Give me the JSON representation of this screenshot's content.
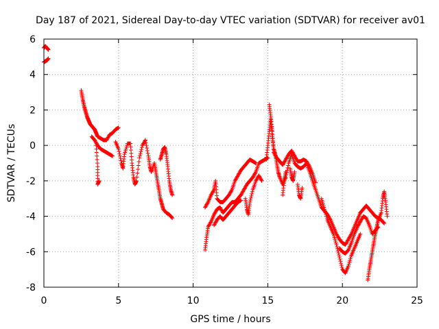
{
  "chart_data": {
    "type": "scatter",
    "title": "Day 187 of 2021, Sidereal Day-to-day VTEC variation (SDTVAR) for receiver av01",
    "xlabel": "GPS time / hours",
    "ylabel": "SDTVAR / TECUs",
    "xlim": [
      0,
      25
    ],
    "ylim": [
      -8,
      6
    ],
    "xticks": [
      0,
      5,
      10,
      15,
      20,
      25
    ],
    "yticks": [
      -8,
      -6,
      -4,
      -2,
      0,
      2,
      4,
      6
    ],
    "grid": true,
    "marker": "+",
    "series": [
      {
        "name": "SDTVAR",
        "color": "#ff0000",
        "polylines": [
          [
            [
              0.0,
              4.7
            ],
            [
              0.1,
              4.75
            ],
            [
              0.2,
              4.8
            ],
            [
              0.3,
              4.9
            ]
          ],
          [
            [
              0.0,
              5.5
            ],
            [
              0.1,
              5.6
            ],
            [
              0.2,
              5.5
            ],
            [
              0.3,
              5.4
            ]
          ],
          [
            [
              2.5,
              3.1
            ],
            [
              2.6,
              2.6
            ],
            [
              2.7,
              2.2
            ],
            [
              2.8,
              1.9
            ],
            [
              2.9,
              1.6
            ],
            [
              3.0,
              1.4
            ],
            [
              3.1,
              1.2
            ],
            [
              3.2,
              1.1
            ],
            [
              3.3,
              1.0
            ],
            [
              3.4,
              0.9
            ],
            [
              3.5,
              0.7
            ],
            [
              3.6,
              0.5
            ],
            [
              3.8,
              0.4
            ],
            [
              4.0,
              0.3
            ],
            [
              4.2,
              0.3
            ],
            [
              4.4,
              0.6
            ],
            [
              4.6,
              0.7
            ],
            [
              4.8,
              0.9
            ],
            [
              5.0,
              1.0
            ]
          ],
          [
            [
              3.2,
              0.5
            ],
            [
              3.4,
              0.3
            ],
            [
              3.6,
              0.0
            ],
            [
              3.8,
              -0.2
            ],
            [
              4.0,
              -0.3
            ],
            [
              4.2,
              -0.4
            ],
            [
              4.4,
              -0.5
            ],
            [
              4.6,
              -0.6
            ]
          ],
          [
            [
              3.5,
              0.0
            ],
            [
              3.6,
              -1.2
            ],
            [
              3.6,
              -2.2
            ],
            [
              3.7,
              -2.0
            ]
          ],
          [
            [
              4.8,
              0.2
            ],
            [
              5.0,
              -0.2
            ],
            [
              5.2,
              -1.0
            ],
            [
              5.3,
              -1.3
            ],
            [
              5.4,
              -0.5
            ],
            [
              5.6,
              0.1
            ],
            [
              5.8,
              0.1
            ],
            [
              5.9,
              -1.0
            ],
            [
              6.0,
              -1.8
            ],
            [
              6.1,
              -2.2
            ],
            [
              6.2,
              -2.0
            ],
            [
              6.4,
              -0.7
            ],
            [
              6.6,
              0.0
            ],
            [
              6.8,
              0.3
            ],
            [
              7.0,
              -0.6
            ],
            [
              7.1,
              -1.2
            ],
            [
              7.2,
              -1.5
            ],
            [
              7.4,
              -1.0
            ],
            [
              7.5,
              -1.5
            ],
            [
              7.6,
              -2.0
            ],
            [
              7.7,
              -2.5
            ],
            [
              7.8,
              -3.0
            ],
            [
              7.9,
              -3.3
            ],
            [
              8.0,
              -3.6
            ],
            [
              8.2,
              -3.8
            ],
            [
              8.4,
              -3.9
            ],
            [
              8.6,
              -4.1
            ]
          ],
          [
            [
              7.8,
              -0.8
            ],
            [
              7.9,
              -0.5
            ],
            [
              8.0,
              -0.2
            ],
            [
              8.1,
              -0.1
            ],
            [
              8.2,
              -0.5
            ],
            [
              8.3,
              -1.2
            ],
            [
              8.4,
              -2.0
            ],
            [
              8.5,
              -2.5
            ],
            [
              8.6,
              -2.8
            ]
          ],
          [
            [
              10.8,
              -5.9
            ],
            [
              10.9,
              -5.2
            ],
            [
              11.0,
              -4.6
            ],
            [
              11.2,
              -4.3
            ],
            [
              11.4,
              -3.9
            ],
            [
              11.6,
              -3.6
            ],
            [
              11.8,
              -3.5
            ],
            [
              12.0,
              -3.8
            ],
            [
              12.2,
              -3.6
            ],
            [
              12.4,
              -3.4
            ],
            [
              12.6,
              -3.2
            ],
            [
              12.8,
              -3.2
            ],
            [
              13.0,
              -3.0
            ],
            [
              13.2,
              -2.8
            ],
            [
              13.4,
              -2.5
            ],
            [
              13.6,
              -2.2
            ],
            [
              13.8,
              -2.0
            ],
            [
              14.0,
              -1.8
            ],
            [
              14.2,
              -1.5
            ],
            [
              14.4,
              -1.0
            ],
            [
              14.6,
              -0.9
            ],
            [
              14.8,
              -0.8
            ],
            [
              15.0,
              -0.7
            ]
          ],
          [
            [
              10.8,
              -3.5
            ],
            [
              11.0,
              -3.2
            ],
            [
              11.2,
              -2.8
            ],
            [
              11.4,
              -2.5
            ],
            [
              11.5,
              -2.0
            ],
            [
              11.6,
              -3.0
            ],
            [
              11.8,
              -3.2
            ],
            [
              12.0,
              -3.2
            ],
            [
              12.2,
              -3.0
            ],
            [
              12.4,
              -2.8
            ],
            [
              12.6,
              -2.5
            ],
            [
              12.8,
              -2.0
            ],
            [
              13.0,
              -1.7
            ],
            [
              13.2,
              -1.4
            ],
            [
              13.4,
              -1.2
            ],
            [
              13.6,
              -1.0
            ],
            [
              13.8,
              -0.8
            ],
            [
              14.0,
              -0.9
            ],
            [
              14.2,
              -1.0
            ]
          ],
          [
            [
              11.4,
              -4.5
            ],
            [
              11.6,
              -4.2
            ],
            [
              11.8,
              -4.0
            ],
            [
              12.0,
              -4.2
            ],
            [
              12.2,
              -4.0
            ],
            [
              12.4,
              -3.8
            ],
            [
              12.6,
              -3.6
            ],
            [
              12.8,
              -3.4
            ],
            [
              13.0,
              -3.2
            ],
            [
              13.2,
              -3.1
            ]
          ],
          [
            [
              13.5,
              -3.0
            ],
            [
              13.6,
              -3.6
            ],
            [
              13.7,
              -3.9
            ],
            [
              13.8,
              -3.2
            ],
            [
              14.0,
              -2.5
            ],
            [
              14.2,
              -2.0
            ],
            [
              14.4,
              -1.7
            ],
            [
              14.6,
              -2.0
            ]
          ],
          [
            [
              14.9,
              -0.8
            ],
            [
              15.0,
              0.0
            ],
            [
              15.1,
              0.8
            ],
            [
              15.2,
              1.5
            ],
            [
              15.3,
              0.5
            ],
            [
              15.4,
              -0.2
            ],
            [
              15.5,
              -0.5
            ],
            [
              15.6,
              -1.0
            ],
            [
              15.7,
              -1.5
            ],
            [
              15.8,
              -1.8
            ],
            [
              16.0,
              -2.2
            ],
            [
              16.2,
              -1.8
            ],
            [
              16.4,
              -1.0
            ],
            [
              16.6,
              -0.5
            ],
            [
              16.8,
              -1.0
            ],
            [
              17.0,
              -1.2
            ],
            [
              17.2,
              -1.3
            ],
            [
              17.4,
              -1.2
            ],
            [
              17.6,
              -1.0
            ],
            [
              17.8,
              -1.5
            ],
            [
              18.0,
              -2.0
            ],
            [
              18.2,
              -2.5
            ],
            [
              18.4,
              -3.0
            ],
            [
              18.6,
              -3.5
            ],
            [
              18.8,
              -3.7
            ],
            [
              19.0,
              -3.9
            ],
            [
              19.2,
              -4.2
            ],
            [
              19.4,
              -4.6
            ],
            [
              19.6,
              -5.0
            ],
            [
              19.8,
              -5.3
            ],
            [
              20.0,
              -5.5
            ],
            [
              20.2,
              -5.6
            ],
            [
              20.4,
              -5.3
            ],
            [
              20.6,
              -5.0
            ],
            [
              20.8,
              -4.6
            ],
            [
              21.0,
              -4.2
            ],
            [
              21.2,
              -3.8
            ],
            [
              21.4,
              -3.6
            ],
            [
              21.6,
              -3.4
            ],
            [
              21.8,
              -3.6
            ],
            [
              22.0,
              -3.8
            ],
            [
              22.2,
              -4.0
            ],
            [
              22.4,
              -4.1
            ],
            [
              22.6,
              -4.2
            ],
            [
              22.8,
              -4.4
            ]
          ],
          [
            [
              15.1,
              2.3
            ],
            [
              15.2,
              1.6
            ],
            [
              15.3,
              0.8
            ],
            [
              15.4,
              -0.4
            ],
            [
              15.6,
              -0.7
            ],
            [
              15.8,
              -0.9
            ],
            [
              16.0,
              -1.1
            ],
            [
              16.2,
              -0.8
            ],
            [
              16.4,
              -0.5
            ],
            [
              16.6,
              -0.3
            ],
            [
              16.8,
              -0.6
            ],
            [
              17.0,
              -0.9
            ],
            [
              17.2,
              -0.9
            ],
            [
              17.4,
              -0.8
            ],
            [
              17.6,
              -0.9
            ],
            [
              17.8,
              -1.2
            ],
            [
              18.0,
              -1.6
            ],
            [
              18.2,
              -2.1
            ]
          ],
          [
            [
              16.0,
              -2.8
            ],
            [
              16.1,
              -2.0
            ],
            [
              16.2,
              -1.5
            ]
          ],
          [
            [
              16.5,
              -1.3
            ],
            [
              16.6,
              -1.8
            ],
            [
              16.7,
              -2.0
            ],
            [
              16.8,
              -1.5
            ]
          ],
          [
            [
              17.0,
              -2.2
            ],
            [
              17.1,
              -2.8
            ],
            [
              17.2,
              -3.0
            ],
            [
              17.3,
              -2.4
            ]
          ],
          [
            [
              18.6,
              -3.0
            ],
            [
              18.8,
              -3.6
            ],
            [
              19.0,
              -4.2
            ],
            [
              19.2,
              -4.6
            ],
            [
              19.4,
              -5.0
            ],
            [
              19.6,
              -5.6
            ],
            [
              19.8,
              -6.3
            ],
            [
              20.0,
              -7.0
            ],
            [
              20.2,
              -7.2
            ],
            [
              20.4,
              -6.8
            ],
            [
              20.6,
              -6.2
            ],
            [
              20.8,
              -5.8
            ],
            [
              21.0,
              -5.4
            ],
            [
              21.2,
              -5.0
            ]
          ],
          [
            [
              19.8,
              -5.8
            ],
            [
              20.0,
              -6.0
            ],
            [
              20.2,
              -6.1
            ],
            [
              20.4,
              -5.9
            ],
            [
              20.6,
              -5.5
            ],
            [
              20.8,
              -5.0
            ],
            [
              21.0,
              -4.6
            ],
            [
              21.2,
              -4.3
            ],
            [
              21.4,
              -4.0
            ],
            [
              21.6,
              -4.1
            ],
            [
              21.8,
              -4.5
            ],
            [
              22.0,
              -5.0
            ],
            [
              22.2,
              -4.8
            ],
            [
              22.4,
              -4.6
            ]
          ],
          [
            [
              21.7,
              -7.6
            ],
            [
              21.8,
              -7.0
            ],
            [
              21.9,
              -6.5
            ],
            [
              22.0,
              -6.0
            ],
            [
              22.1,
              -5.5
            ],
            [
              22.2,
              -5.0
            ],
            [
              22.3,
              -4.6
            ],
            [
              22.4,
              -4.2
            ],
            [
              22.6,
              -3.8
            ],
            [
              22.7,
              -3.0
            ],
            [
              22.8,
              -2.6
            ],
            [
              22.9,
              -3.2
            ],
            [
              23.0,
              -4.0
            ]
          ]
        ]
      }
    ]
  }
}
